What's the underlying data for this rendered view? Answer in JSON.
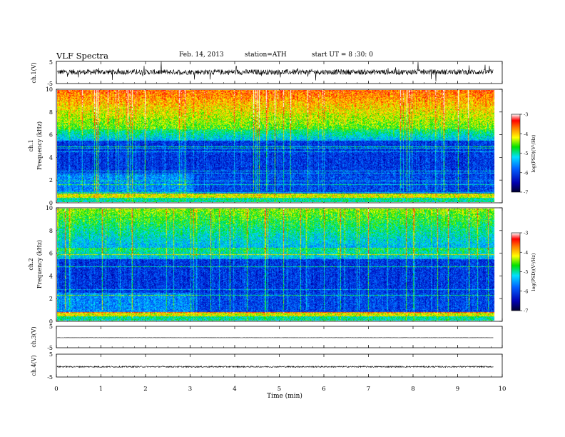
{
  "header": {
    "title": "VLF  Spectra",
    "date": "Feb. 14, 2013",
    "station": "station=ATH",
    "start": "start  UT =   8  :30: 0"
  },
  "chart_data": [
    {
      "type": "line",
      "panel": "ch1-waveform",
      "ylabel": "ch.1(V)",
      "yticks": [
        "5",
        "-5"
      ],
      "ylim": [
        -5,
        5
      ],
      "description_values": {
        "baseline_v": 0.2,
        "noise_amplitude_v": 1.2
      }
    },
    {
      "type": "heatmap",
      "panel": "ch1-spectrogram",
      "ylabel_channel": "ch.1",
      "ylabel": "Frequency  (kHz)",
      "yticks": [
        "10",
        "8",
        "6",
        "4",
        "2",
        "0"
      ],
      "ylim": [
        0,
        10
      ],
      "colorbar": {
        "label": "log(PSD)(V²/Hz)",
        "ticks": [
          "-3",
          "-4",
          "-5",
          "-6",
          "-7"
        ],
        "range": [
          -7,
          -3
        ]
      }
    },
    {
      "type": "heatmap",
      "panel": "ch2-spectrogram",
      "ylabel_channel": "ch.2",
      "ylabel": "Frequency  (kHz)",
      "yticks": [
        "10",
        "8",
        "6",
        "4",
        "2",
        "0"
      ],
      "ylim": [
        0,
        10
      ],
      "colorbar": {
        "label": "log(PSD)(V²/Hz)",
        "ticks": [
          "-3",
          "-4",
          "-5",
          "-6",
          "-7"
        ],
        "range": [
          -7,
          -3
        ]
      }
    },
    {
      "type": "line",
      "panel": "ch3-waveform",
      "ylabel": "ch.3(V)",
      "yticks": [
        "5",
        "-5"
      ],
      "ylim": [
        -5,
        5
      ],
      "description_values": {
        "baseline_v": -0.3,
        "noise_amplitude_v": 0.05
      }
    },
    {
      "type": "line",
      "panel": "ch4-waveform",
      "ylabel": "ch.4(V)",
      "yticks": [
        "5",
        "-5"
      ],
      "ylim": [
        -5,
        5
      ],
      "description_values": {
        "baseline_v": -0.5,
        "noise_amplitude_v": 0.3
      }
    }
  ],
  "xaxis": {
    "label": "Time  (min)",
    "ticks": [
      "0",
      "1",
      "2",
      "3",
      "4",
      "5",
      "6",
      "7",
      "8",
      "9",
      "10"
    ],
    "xlim": [
      0,
      10
    ],
    "data_end_min": 9.8
  }
}
